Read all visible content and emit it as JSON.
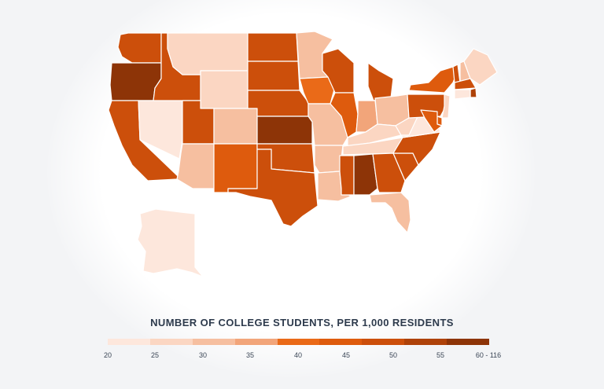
{
  "legend": {
    "title": "NUMBER OF COLLEGE STUDENTS, PER 1,000 RESIDENTS",
    "ticks": [
      "20",
      "25",
      "30",
      "35",
      "40",
      "45",
      "50",
      "55",
      "60 - 116"
    ],
    "bin_colors": [
      "#fde7dc",
      "#fbd6c2",
      "#f6bfa0",
      "#f2a57a",
      "#ea6a18",
      "#de5b0d",
      "#cc4f0b",
      "#ae4209",
      "#8d3407"
    ]
  },
  "states": [
    {
      "id": "WA",
      "bin": 6
    },
    {
      "id": "OR",
      "bin": 8
    },
    {
      "id": "CA",
      "bin": 6
    },
    {
      "id": "NV",
      "bin": 0
    },
    {
      "id": "ID",
      "bin": 6
    },
    {
      "id": "MT",
      "bin": 1
    },
    {
      "id": "WY",
      "bin": 1
    },
    {
      "id": "UT",
      "bin": 6
    },
    {
      "id": "AZ",
      "bin": 2
    },
    {
      "id": "CO",
      "bin": 2
    },
    {
      "id": "NM",
      "bin": 5
    },
    {
      "id": "ND",
      "bin": 6
    },
    {
      "id": "SD",
      "bin": 6
    },
    {
      "id": "NE",
      "bin": 6
    },
    {
      "id": "KS",
      "bin": 8
    },
    {
      "id": "OK",
      "bin": 6
    },
    {
      "id": "TX",
      "bin": 6
    },
    {
      "id": "MN",
      "bin": 2
    },
    {
      "id": "IA",
      "bin": 4
    },
    {
      "id": "MO",
      "bin": 2
    },
    {
      "id": "AR",
      "bin": 2
    },
    {
      "id": "LA",
      "bin": 2
    },
    {
      "id": "WI",
      "bin": 6
    },
    {
      "id": "IL",
      "bin": 5
    },
    {
      "id": "MI",
      "bin": 6
    },
    {
      "id": "IN",
      "bin": 3
    },
    {
      "id": "OH",
      "bin": 2
    },
    {
      "id": "KY",
      "bin": 1
    },
    {
      "id": "TN",
      "bin": 1
    },
    {
      "id": "MS",
      "bin": 6
    },
    {
      "id": "AL",
      "bin": 8
    },
    {
      "id": "GA",
      "bin": 6
    },
    {
      "id": "FL",
      "bin": 2
    },
    {
      "id": "SC",
      "bin": 6
    },
    {
      "id": "NC",
      "bin": 6
    },
    {
      "id": "VA",
      "bin": 0
    },
    {
      "id": "WV",
      "bin": 1
    },
    {
      "id": "PA",
      "bin": 6
    },
    {
      "id": "NY",
      "bin": 5
    },
    {
      "id": "VT",
      "bin": 6
    },
    {
      "id": "NH",
      "bin": 2
    },
    {
      "id": "ME",
      "bin": 1
    },
    {
      "id": "MA",
      "bin": 6
    },
    {
      "id": "RI",
      "bin": 7
    },
    {
      "id": "CT",
      "bin": 0
    },
    {
      "id": "NJ",
      "bin": 1
    },
    {
      "id": "DE",
      "bin": 5
    },
    {
      "id": "MD",
      "bin": 5
    },
    {
      "id": "AK",
      "bin": 0
    }
  ]
}
